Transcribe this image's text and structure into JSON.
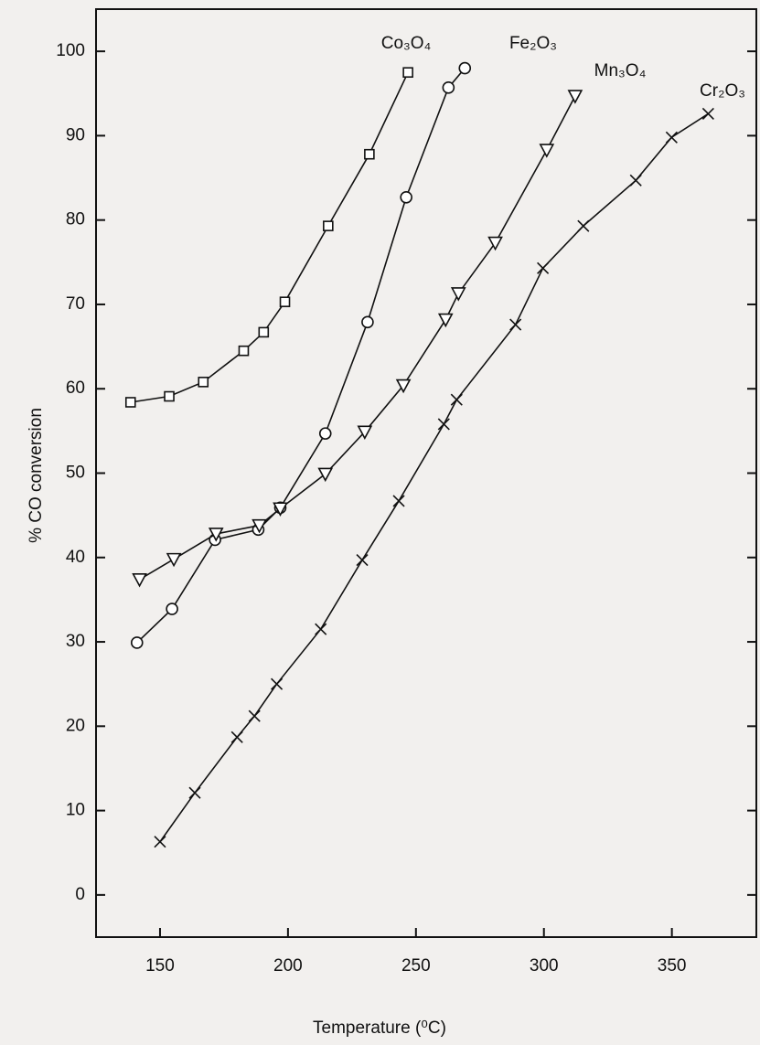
{
  "chart_data": {
    "type": "line",
    "x_label": "Temperature (⁰C)",
    "y_label": "% CO conversion",
    "xlim": [
      125,
      383
    ],
    "xticks": [
      150,
      200,
      250,
      300,
      350
    ],
    "ylim": [
      -5,
      105
    ],
    "yticks": [
      0,
      10,
      20,
      30,
      40,
      50,
      60,
      70,
      80,
      90,
      100
    ],
    "series": [
      {
        "name": "Co₃O₄",
        "color": "#111111",
        "marker": "square",
        "x": [
          138.5,
          153.6,
          166.9,
          182.7,
          190.5,
          198.8,
          215.7,
          231.8,
          246.9
        ],
        "values": [
          58.4,
          59.1,
          60.8,
          64.5,
          66.7,
          70.3,
          79.3,
          87.8,
          97.5
        ]
      },
      {
        "name": "Fe₂O₃",
        "color": "#111111",
        "marker": "circle",
        "x": [
          141,
          154.7,
          171.5,
          188.4,
          197,
          214.6,
          231.1,
          246.2,
          262.7,
          269.1
        ],
        "values": [
          29.9,
          33.9,
          42.1,
          43.3,
          45.9,
          54.7,
          67.9,
          82.7,
          95.7,
          98.0
        ]
      },
      {
        "name": "Mn₃O₄",
        "color": "#111111",
        "marker": "triangle-down",
        "x": [
          142,
          155.4,
          171.9,
          188.8,
          197,
          214.6,
          230,
          245.1,
          261.6,
          266.6,
          281,
          301.1,
          312.2
        ],
        "values": [
          37.4,
          39.8,
          42.8,
          43.8,
          45.8,
          49.9,
          54.9,
          60.4,
          68.2,
          71.3,
          77.3,
          88.3,
          94.7
        ]
      },
      {
        "name": "Cr₂O₃",
        "color": "#111111",
        "marker": "cross",
        "x": [
          150,
          163.6,
          180.1,
          186.9,
          195.6,
          212.8,
          229,
          243.3,
          260.9,
          265.9,
          288.9,
          299.6,
          315.4,
          335.9,
          349.9,
          364.2
        ],
        "values": [
          6.3,
          12.1,
          18.7,
          21.2,
          25.0,
          31.5,
          39.7,
          46.7,
          55.8,
          58.7,
          67.6,
          74.3,
          79.3,
          84.7,
          89.8,
          92.6
        ]
      }
    ]
  }
}
